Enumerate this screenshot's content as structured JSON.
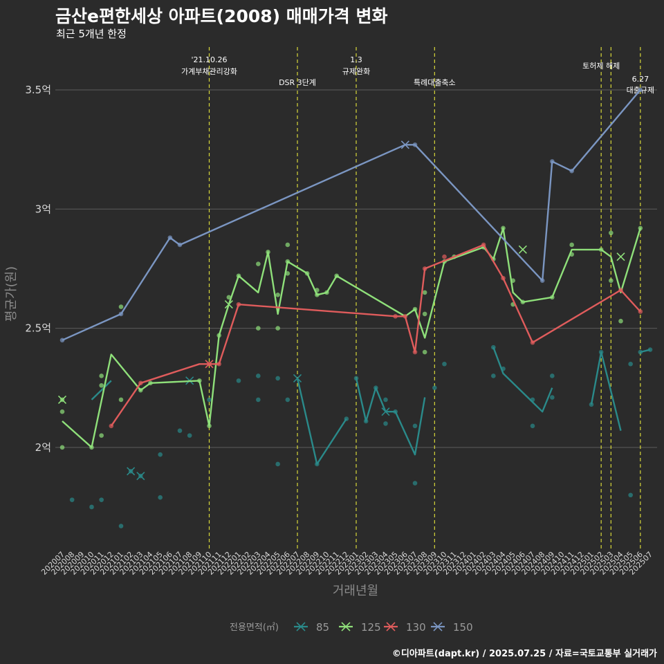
{
  "chart_data": {
    "type": "line",
    "title": "금산e편한세상 아파트(2008) 매매가격 변화",
    "subtitle": "최근 5개년 한정",
    "xlabel": "거래년월",
    "ylabel": "평균가(원)",
    "caption": "©디아파트(dapt.kr) / 2025.07.25 / 자료=국토교통부 실거래가",
    "y_ticks": [
      {
        "value": 20000,
        "label": "2억"
      },
      {
        "value": 25000,
        "label": "2.5억"
      },
      {
        "value": 30000,
        "label": "3억"
      },
      {
        "value": 35000,
        "label": "3.5억"
      }
    ],
    "ylim": [
      15700,
      36800
    ],
    "grid": true,
    "legend_title": "전용면적(㎡)",
    "legend_position": "bottom",
    "months": [
      "202007",
      "202008",
      "202009",
      "202010",
      "202011",
      "202012",
      "202101",
      "202102",
      "202103",
      "202104",
      "202105",
      "202106",
      "202107",
      "202108",
      "202109",
      "202110",
      "202111",
      "202112",
      "202201",
      "202202",
      "202203",
      "202204",
      "202205",
      "202206",
      "202207",
      "202208",
      "202209",
      "202210",
      "202211",
      "202212",
      "202301",
      "202302",
      "202303",
      "202304",
      "202305",
      "202306",
      "202307",
      "202308",
      "202309",
      "202310",
      "202311",
      "202312",
      "202401",
      "202402",
      "202403",
      "202404",
      "202405",
      "202406",
      "202407",
      "202408",
      "202409",
      "202410",
      "202411",
      "202412",
      "202501",
      "202502",
      "202503",
      "202504",
      "202505",
      "202506",
      "202507"
    ],
    "events": [
      {
        "month": "202110",
        "lines": [
          "'21.10.26",
          "가계부채관리강화"
        ],
        "row": 0
      },
      {
        "month": "202207",
        "lines": [
          "DSR 3단계"
        ],
        "row": 2
      },
      {
        "month": "202301",
        "lines": [
          "1.3",
          "규제완화"
        ],
        "row": 0
      },
      {
        "month": "202309",
        "lines": [
          "특례대출축소"
        ],
        "row": 2
      },
      {
        "month": "202502",
        "lines": [
          "토허제 해제"
        ],
        "row": 1
      },
      {
        "month": "202503",
        "lines": [],
        "row": 1
      },
      {
        "month": "202506",
        "lines": [
          "6.27",
          "대출규제"
        ],
        "row": 2
      }
    ],
    "series": [
      {
        "name": "85",
        "color": "#2a8a8a",
        "line": [
          [
            "202010",
            22000
          ],
          [
            "202012",
            22800
          ],
          null,
          [
            "202207",
            22900
          ],
          [
            "202209",
            19300
          ],
          [
            "202212",
            21200
          ],
          null,
          [
            "202301",
            22900
          ],
          [
            "202302",
            21100
          ],
          [
            "202303",
            22500
          ],
          [
            "202304",
            21500
          ],
          [
            "202305",
            21500
          ],
          [
            "202307",
            19700
          ],
          [
            "202308",
            22100
          ],
          null,
          [
            "202403",
            24200
          ],
          [
            "202404",
            23100
          ],
          [
            "202408",
            21500
          ],
          [
            "202409",
            22500
          ],
          null,
          [
            "202501",
            21800
          ],
          [
            "202502",
            24000
          ],
          [
            "202504",
            20700
          ],
          null,
          [
            "202506",
            24000
          ],
          [
            "202507",
            24100
          ]
        ],
        "segments": [
          [
            [
              "202007",
              17800
            ],
            null
          ],
          [
            [
              "202010",
              17500
            ],
            [
              "202011",
              17800
            ],
            [
              "202101",
              17100
            ],
            [
              "202102",
              19000
            ],
            [
              "202103",
              18800
            ],
            [
              "202104",
              18800
            ]
          ],
          [
            [
              "202107",
              20700
            ],
            [
              "202108",
              21600
            ],
            [
              "202110",
              22000
            ],
            [
              "202201",
              22800
            ]
          ],
          [
            [
              "202203",
              22500
            ],
            [
              "202205",
              21100
            ],
            [
              "202207",
              22900
            ],
            [
              "202209",
              19300
            ],
            [
              "202212",
              21200
            ]
          ],
          [
            [
              "202301",
              22900
            ],
            [
              "202302",
              21100
            ],
            [
              "202303",
              22500
            ],
            [
              "202304",
              21500
            ],
            [
              "202305",
              21500
            ],
            [
              "202307",
              19700
            ],
            [
              "202308",
              22100
            ]
          ],
          [
            [
              "202403",
              24200
            ],
            [
              "202404",
              23100
            ],
            [
              "202408",
              21500
            ],
            [
              "202409",
              22500
            ]
          ],
          [
            [
              "202501",
              21800
            ],
            [
              "202502",
              24000
            ],
            [
              "202504",
              20700
            ]
          ],
          [
            [
              "202506",
              24000
            ],
            [
              "202507",
              24100
            ]
          ]
        ],
        "points": [
          [
            "202008",
            17800
          ],
          [
            "202010",
            17500
          ],
          [
            "202011",
            17800
          ],
          [
            "202101",
            16700
          ],
          [
            "202102",
            19000
          ],
          [
            "202103",
            18800
          ],
          [
            "202105",
            17900
          ],
          [
            "202105",
            19700
          ],
          [
            "202108",
            20500
          ],
          [
            "202107",
            20700
          ],
          [
            "202110",
            22000
          ],
          [
            "202201",
            22800
          ],
          [
            "202203",
            22000
          ],
          [
            "202203",
            23000
          ],
          [
            "202206",
            22000
          ],
          [
            "202205",
            22900
          ],
          [
            "202205",
            19300
          ],
          [
            "202209",
            19300
          ],
          [
            "202212",
            21200
          ],
          [
            "202301",
            22900
          ],
          [
            "202302",
            21100
          ],
          [
            "202303",
            22500
          ],
          [
            "202304",
            21000
          ],
          [
            "202304",
            22000
          ],
          [
            "202305",
            21500
          ],
          [
            "202307",
            18500
          ],
          [
            "202307",
            20900
          ],
          [
            "202309",
            22500
          ],
          [
            "202310",
            23500
          ],
          [
            "202403",
            24200
          ],
          [
            "202403",
            23000
          ],
          [
            "202404",
            23300
          ],
          [
            "202407",
            20900
          ],
          [
            "202407",
            22000
          ],
          [
            "202409",
            23000
          ],
          [
            "202409",
            22100
          ],
          [
            "202501",
            21800
          ],
          [
            "202502",
            24000
          ],
          [
            "202505",
            23500
          ],
          [
            "202505",
            18000
          ],
          [
            "202506",
            24000
          ],
          [
            "202507",
            24100
          ]
        ],
        "crosses": [
          [
            "202102",
            19000
          ],
          [
            "202103",
            18800
          ],
          [
            "202108",
            22800
          ],
          [
            "202207",
            22900
          ],
          [
            "202304",
            21500
          ]
        ]
      },
      {
        "name": "125",
        "color": "#8fe07a",
        "line": [
          [
            "202007",
            21100
          ],
          [
            "202010",
            20000
          ],
          [
            "202012",
            23900
          ],
          [
            "202103",
            22400
          ],
          [
            "202104",
            22700
          ],
          [
            "202109",
            22800
          ],
          [
            "202110",
            20900
          ],
          [
            "202111",
            24700
          ],
          [
            "202112",
            26000
          ],
          [
            "202201",
            27200
          ],
          [
            "202203",
            26500
          ],
          [
            "202204",
            28200
          ],
          [
            "202205",
            25600
          ],
          [
            "202206",
            27800
          ],
          [
            "202208",
            27300
          ],
          [
            "202209",
            26400
          ],
          [
            "202210",
            26500
          ],
          [
            "202211",
            27200
          ],
          [
            "202306",
            25500
          ],
          [
            "202307",
            25800
          ],
          [
            "202308",
            24600
          ],
          [
            "202310",
            27800
          ],
          [
            "202402",
            28400
          ],
          [
            "202403",
            27900
          ],
          [
            "202404",
            29200
          ],
          [
            "202405",
            26500
          ],
          [
            "202406",
            26100
          ],
          [
            "202409",
            26300
          ],
          [
            "202411",
            28300
          ],
          [
            "202502",
            28300
          ],
          [
            "202503",
            28000
          ],
          [
            "202504",
            26500
          ],
          [
            "202506",
            29200
          ]
        ],
        "points": [
          [
            "202007",
            22000
          ],
          [
            "202007",
            21500
          ],
          [
            "202007",
            20000
          ],
          [
            "202010",
            20000
          ],
          [
            "202011",
            23000
          ],
          [
            "202011",
            22600
          ],
          [
            "202011",
            20500
          ],
          [
            "202101",
            25900
          ],
          [
            "202101",
            22000
          ],
          [
            "202103",
            22400
          ],
          [
            "202104",
            22700
          ],
          [
            "202109",
            22800
          ],
          [
            "202110",
            20900
          ],
          [
            "202111",
            24700
          ],
          [
            "202112",
            26300
          ],
          [
            "202201",
            27200
          ],
          [
            "202203",
            27700
          ],
          [
            "202203",
            25000
          ],
          [
            "202204",
            28200
          ],
          [
            "202205",
            26400
          ],
          [
            "202205",
            25000
          ],
          [
            "202206",
            28500
          ],
          [
            "202206",
            27800
          ],
          [
            "202206",
            27300
          ],
          [
            "202208",
            27300
          ],
          [
            "202209",
            26600
          ],
          [
            "202209",
            26400
          ],
          [
            "202210",
            26500
          ],
          [
            "202211",
            27200
          ],
          [
            "202307",
            25800
          ],
          [
            "202308",
            26500
          ],
          [
            "202308",
            25600
          ],
          [
            "202308",
            24000
          ],
          [
            "202310",
            27800
          ],
          [
            "202311",
            28000
          ],
          [
            "202402",
            28400
          ],
          [
            "202403",
            27900
          ],
          [
            "202404",
            29200
          ],
          [
            "202405",
            27000
          ],
          [
            "202405",
            26000
          ],
          [
            "202406",
            26100
          ],
          [
            "202409",
            26300
          ],
          [
            "202411",
            28500
          ],
          [
            "202411",
            28100
          ],
          [
            "202502",
            28300
          ],
          [
            "202503",
            29000
          ],
          [
            "202503",
            27000
          ],
          [
            "202504",
            25300
          ],
          [
            "202506",
            29200
          ]
        ],
        "crosses": [
          [
            "202007",
            22000
          ],
          [
            "202112",
            26000
          ],
          [
            "202406",
            28300
          ],
          [
            "202504",
            28000
          ]
        ]
      },
      {
        "name": "130",
        "color": "#e05c5c",
        "line": [
          [
            "202012",
            20900
          ],
          [
            "202103",
            22700
          ],
          [
            "202109",
            23500
          ],
          [
            "202111",
            23500
          ],
          [
            "202201",
            26000
          ],
          [
            "202305",
            25500
          ],
          [
            "202306",
            25500
          ],
          [
            "202307",
            24000
          ],
          [
            "202308",
            27500
          ],
          [
            "202402",
            28500
          ],
          [
            "202404",
            27100
          ],
          [
            "202407",
            24400
          ],
          [
            "202504",
            26600
          ],
          [
            "202506",
            25700
          ]
        ],
        "points": [
          [
            "202012",
            20900
          ],
          [
            "202103",
            22700
          ],
          [
            "202110",
            23500
          ],
          [
            "202111",
            23500
          ],
          [
            "202201",
            26000
          ],
          [
            "202305",
            25500
          ],
          [
            "202306",
            25500
          ],
          [
            "202307",
            24000
          ],
          [
            "202308",
            27500
          ],
          [
            "202310",
            28000
          ],
          [
            "202402",
            28500
          ],
          [
            "202404",
            27100
          ],
          [
            "202407",
            24400
          ],
          [
            "202504",
            26600
          ],
          [
            "202506",
            25700
          ]
        ],
        "crosses": [
          [
            "202110",
            23500
          ]
        ]
      },
      {
        "name": "150",
        "color": "#7b96c2",
        "line": [
          [
            "202007",
            24500
          ],
          [
            "202101",
            25600
          ],
          [
            "202106",
            28800
          ],
          [
            "202107",
            28500
          ],
          [
            "202306",
            32700
          ],
          [
            "202307",
            32700
          ],
          [
            "202408",
            27000
          ],
          [
            "202409",
            32000
          ],
          [
            "202411",
            31600
          ],
          [
            "202506",
            35000
          ]
        ],
        "points": [
          [
            "202007",
            24500
          ],
          [
            "202101",
            25600
          ],
          [
            "202106",
            28800
          ],
          [
            "202107",
            28500
          ],
          [
            "202307",
            32700
          ],
          [
            "202408",
            27000
          ],
          [
            "202409",
            32000
          ],
          [
            "202411",
            31600
          ],
          [
            "202506",
            35000
          ]
        ],
        "crosses": [
          [
            "202306",
            32700
          ]
        ]
      }
    ]
  }
}
